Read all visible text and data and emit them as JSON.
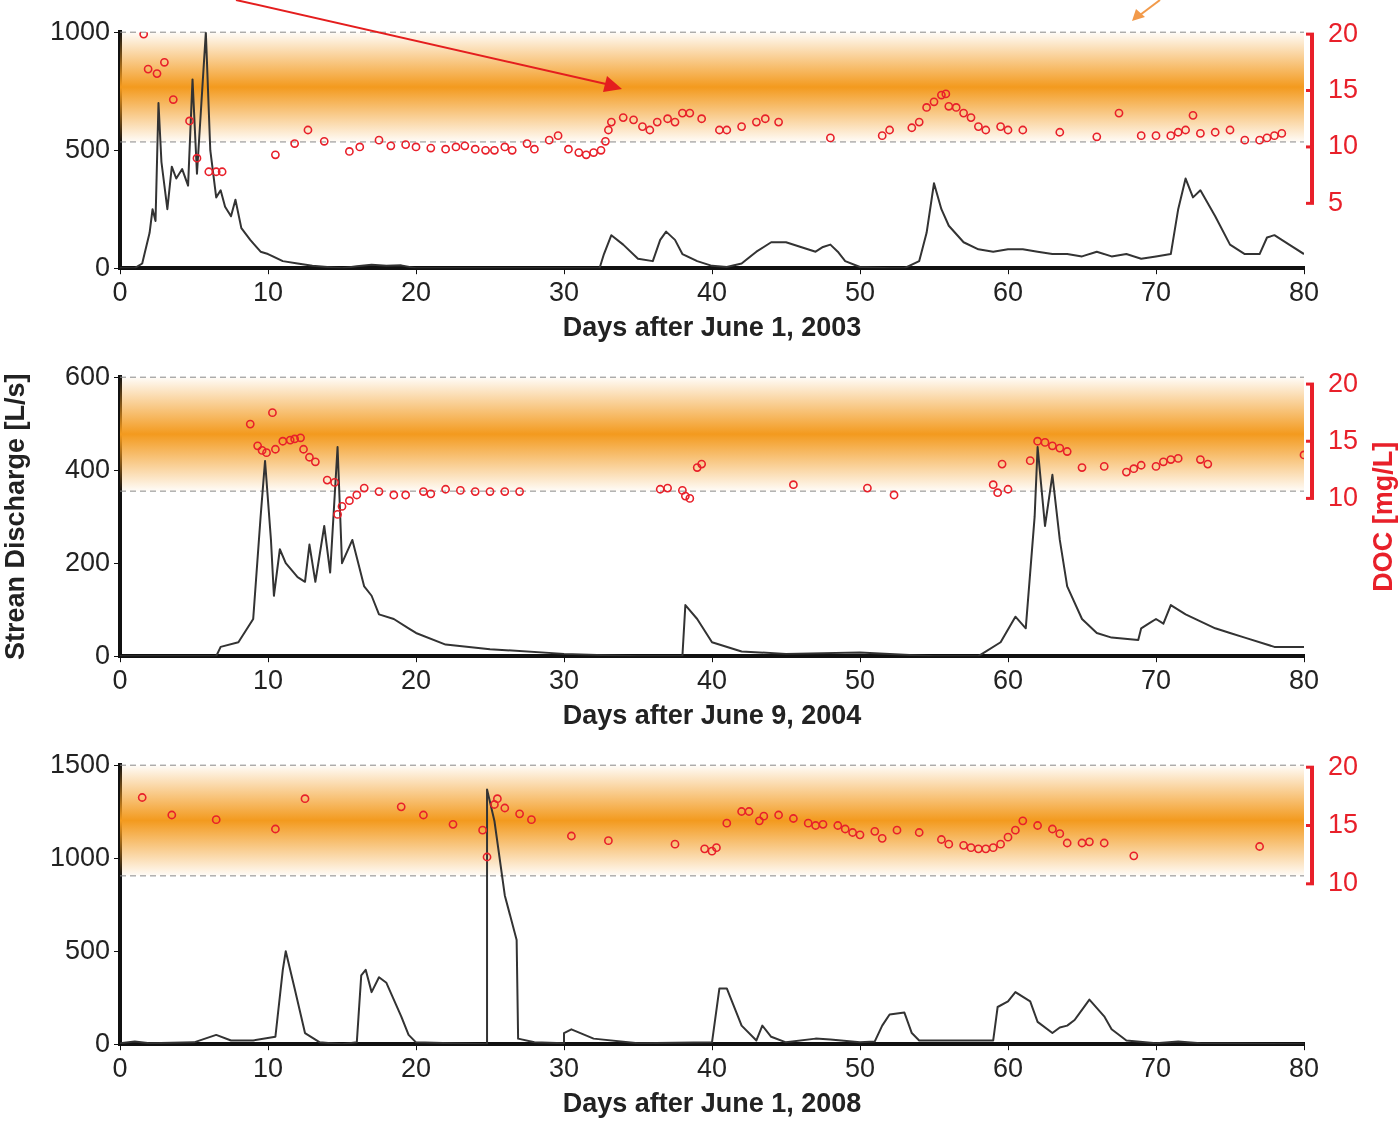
{
  "chart_data": [
    {
      "type": "line",
      "xlabel": "Days after June 1, 2003",
      "xlim": [
        0,
        80
      ],
      "xticks": [
        0,
        10,
        20,
        30,
        40,
        50,
        60,
        70,
        80
      ],
      "ylim": [
        0,
        1000
      ],
      "yticks": [
        0,
        500,
        1000
      ],
      "y2lim": [
        -0.75,
        20.17
      ],
      "y2ticks": [
        5,
        10,
        15,
        20
      ],
      "grid": false,
      "bands": [
        {
          "axis": "y",
          "from": 535,
          "to": 1000,
          "color": "#f39a1e"
        }
      ],
      "ref_lines": [
        {
          "axis": "y",
          "value": 1000,
          "color": "#888888",
          "line_style": "dashed"
        },
        {
          "axis": "y",
          "value": 535,
          "color": "#888888",
          "line_style": "dashed"
        }
      ],
      "series": [
        {
          "type": "line",
          "color": "#333333",
          "x": [
            0,
            1,
            1.5,
            2,
            2.2,
            2.4,
            2.6,
            2.8,
            3.2,
            3.5,
            3.8,
            4.2,
            4.6,
            4.9,
            5.2,
            5.5,
            5.8,
            6.1,
            6.5,
            6.8,
            7.1,
            7.5,
            7.8,
            8.2,
            8.8,
            9.5,
            10,
            11,
            12,
            13,
            14,
            15,
            16,
            17,
            18,
            19,
            20,
            22,
            25,
            30,
            32.4,
            32.7,
            33.2,
            34,
            35,
            36,
            36.5,
            36.9,
            37.5,
            38,
            39,
            40,
            41,
            42,
            43,
            44,
            45,
            46,
            47,
            47.5,
            48,
            48.5,
            49,
            50,
            52,
            53,
            54,
            54.5,
            55,
            55.5,
            56,
            57,
            58,
            59,
            60,
            61,
            62,
            63,
            64,
            65,
            66,
            67,
            68,
            69,
            70,
            71,
            71.5,
            72,
            72.5,
            73,
            74,
            75,
            76,
            77,
            77.5,
            78,
            79,
            80
          ],
          "values": [
            0,
            0,
            20,
            150,
            250,
            200,
            700,
            450,
            250,
            430,
            380,
            420,
            350,
            800,
            400,
            700,
            1000,
            500,
            300,
            330,
            260,
            220,
            290,
            170,
            120,
            70,
            60,
            30,
            20,
            10,
            5,
            0,
            8,
            15,
            10,
            12,
            0,
            0,
            0,
            0,
            0,
            60,
            140,
            100,
            40,
            30,
            120,
            155,
            120,
            60,
            30,
            10,
            5,
            20,
            70,
            110,
            110,
            90,
            70,
            90,
            100,
            70,
            30,
            5,
            0,
            0,
            30,
            150,
            360,
            250,
            180,
            110,
            80,
            70,
            80,
            80,
            70,
            60,
            60,
            50,
            70,
            50,
            60,
            40,
            50,
            60,
            250,
            380,
            300,
            330,
            220,
            100,
            60,
            60,
            130,
            140,
            100,
            60
          ]
        },
        {
          "type": "scatter",
          "axis": "y2",
          "color": "#e8202a",
          "marker": "circle",
          "x": [
            1.6,
            1.9,
            2.5,
            3.0,
            3.6,
            4.7,
            5.2,
            6.0,
            6.5,
            6.9,
            10.5,
            11.8,
            12.7,
            13.8,
            15.5,
            16.2,
            17.5,
            18.3,
            19.3,
            20,
            21,
            22,
            22.7,
            23.3,
            24,
            24.7,
            25.3,
            26,
            26.5,
            27.5,
            28,
            29,
            29.6,
            30.3,
            31,
            31.5,
            32,
            32.5,
            32.8,
            33,
            33.2,
            34,
            34.7,
            35.3,
            35.8,
            36.3,
            37,
            37.5,
            38,
            38.5,
            39.3,
            40.5,
            41,
            42,
            43,
            43.6,
            44.5,
            48,
            51.5,
            52,
            53.5,
            54,
            54.5,
            55,
            55.5,
            55.8,
            56,
            56.5,
            57,
            57.5,
            58,
            58.5,
            59.5,
            60,
            61,
            63.5,
            66,
            67.5,
            69,
            70,
            71,
            71.5,
            72,
            72.5,
            73,
            74,
            75,
            76,
            77,
            77.5,
            78,
            78.5
          ],
          "values": [
            20,
            16.9,
            16.5,
            17.5,
            14.2,
            12.3,
            9,
            7.8,
            7.8,
            7.8,
            9.3,
            10.3,
            11.5,
            10.5,
            9.6,
            10,
            10.6,
            10.1,
            10.2,
            10,
            9.9,
            9.8,
            10,
            10.1,
            9.8,
            9.7,
            9.7,
            10,
            9.7,
            10.3,
            9.8,
            10.6,
            11,
            9.8,
            9.5,
            9.3,
            9.5,
            9.7,
            10.5,
            11.5,
            12.2,
            12.6,
            12.4,
            11.8,
            11.5,
            12.2,
            12.5,
            12.2,
            13,
            13,
            12.5,
            11.5,
            11.5,
            11.8,
            12.2,
            12.5,
            12.2,
            10.8,
            11,
            11.5,
            11.7,
            12.2,
            13.5,
            14,
            14.6,
            14.7,
            13.6,
            13.5,
            13,
            12.6,
            11.8,
            11.5,
            11.8,
            11.5,
            11.5,
            11.3,
            10.9,
            13,
            11,
            11,
            11,
            11.3,
            11.5,
            12.8,
            11.2,
            11.3,
            11.5,
            10.6,
            10.6,
            10.8,
            11,
            11.2
          ]
        }
      ]
    },
    {
      "type": "line",
      "xlabel": "Days after June 9, 2004",
      "ylabel": "Strean Discharge [L/s]",
      "y2label": "DOC [mg/L]",
      "xlim": [
        0,
        80
      ],
      "xticks": [
        0,
        10,
        20,
        30,
        40,
        50,
        60,
        70,
        80
      ],
      "ylim": [
        0,
        600
      ],
      "yticks": [
        0,
        200,
        400,
        600
      ],
      "y2lim": [
        -3.8,
        20.6
      ],
      "y2ticks": [
        10,
        15,
        20
      ],
      "grid": false,
      "bands": [
        {
          "axis": "y",
          "from": 355,
          "to": 600,
          "color": "#f39a1e"
        }
      ],
      "ref_lines": [
        {
          "axis": "y",
          "value": 600,
          "color": "#888888",
          "line_style": "dashed"
        },
        {
          "axis": "y",
          "value": 355,
          "color": "#888888",
          "line_style": "dashed"
        }
      ],
      "series": [
        {
          "type": "line",
          "color": "#333333",
          "x": [
            0,
            6.5,
            6.8,
            8,
            9,
            9.5,
            9.8,
            10.2,
            10.4,
            10.8,
            11.2,
            12,
            12.5,
            12.8,
            13.2,
            13.8,
            14.2,
            14.7,
            15,
            15.7,
            16.5,
            17,
            17.5,
            18.5,
            19.5,
            20,
            22,
            25,
            30,
            35,
            38,
            38.2,
            39,
            40,
            42,
            45,
            50,
            55,
            58,
            59.5,
            60.5,
            61.2,
            61.8,
            62,
            62.5,
            63,
            63.5,
            64,
            65,
            66,
            67,
            68.8,
            69,
            69.5,
            70,
            70.5,
            71,
            72,
            73,
            74,
            75,
            76,
            78,
            80
          ],
          "values": [
            0,
            0,
            20,
            30,
            80,
            300,
            420,
            250,
            130,
            230,
            200,
            170,
            160,
            240,
            160,
            280,
            180,
            450,
            200,
            250,
            150,
            130,
            90,
            80,
            60,
            50,
            25,
            15,
            5,
            0,
            0,
            110,
            80,
            30,
            10,
            5,
            8,
            0,
            0,
            30,
            85,
            60,
            300,
            450,
            280,
            390,
            250,
            150,
            80,
            50,
            40,
            35,
            60,
            70,
            80,
            70,
            110,
            90,
            75,
            60,
            50,
            40,
            20,
            20
          ]
        },
        {
          "type": "scatter",
          "axis": "y2",
          "color": "#e8202a",
          "marker": "circle",
          "x": [
            8.8,
            9.3,
            9.6,
            9.9,
            10.3,
            10.5,
            11,
            11.5,
            11.8,
            12.2,
            12.4,
            12.8,
            13.2,
            14,
            14.5,
            14.7,
            15,
            15.5,
            16,
            16.5,
            17.5,
            18.5,
            19.3,
            20.5,
            21,
            22,
            23,
            24,
            25,
            26,
            27,
            36.5,
            37,
            38,
            38.2,
            38.5,
            39,
            39.3,
            45.5,
            50.5,
            52.3,
            59,
            59.3,
            59.6,
            60,
            61.5,
            62,
            62.5,
            63,
            63.5,
            64,
            65,
            66.5,
            68,
            68.5,
            69,
            70,
            70.5,
            71,
            71.5,
            73,
            73.5,
            80
          ],
          "values": [
            16.5,
            14.6,
            14.2,
            14,
            17.5,
            14.3,
            15,
            15.1,
            15.2,
            15.3,
            14.3,
            13.6,
            13.2,
            11.6,
            11.4,
            8.6,
            9.3,
            9.8,
            10.3,
            10.9,
            10.6,
            10.3,
            10.3,
            10.6,
            10.4,
            10.8,
            10.7,
            10.6,
            10.6,
            10.6,
            10.6,
            10.8,
            10.9,
            10.7,
            10.2,
            10,
            12.7,
            13,
            11.2,
            10.9,
            10.3,
            11.2,
            10.5,
            13,
            10.8,
            13.3,
            15,
            14.9,
            14.6,
            14.4,
            14.1,
            12.7,
            12.8,
            12.3,
            12.6,
            12.9,
            12.8,
            13.2,
            13.4,
            13.5,
            13.4,
            13,
            13.8
          ]
        }
      ]
    },
    {
      "type": "line",
      "xlabel": "Days after June 1, 2008",
      "xlim": [
        0,
        80
      ],
      "xticks": [
        0,
        10,
        20,
        30,
        40,
        50,
        60,
        70,
        80
      ],
      "ylim": [
        0,
        1500
      ],
      "yticks": [
        0,
        500,
        1000,
        1500
      ],
      "y2lim": [
        -3.75,
        20.17
      ],
      "y2ticks": [
        10,
        15,
        20
      ],
      "grid": false,
      "bands": [
        {
          "axis": "y",
          "from": 905,
          "to": 1500,
          "color": "#f39a1e"
        }
      ],
      "ref_lines": [
        {
          "axis": "y",
          "value": 1500,
          "color": "#888888",
          "line_style": "dashed"
        },
        {
          "axis": "y",
          "value": 905,
          "color": "#888888",
          "line_style": "dashed"
        }
      ],
      "series": [
        {
          "type": "line",
          "color": "#333333",
          "x": [
            0,
            1,
            2,
            5,
            6.5,
            7.5,
            9,
            10.5,
            11,
            11.2,
            11.8,
            12.5,
            13.5,
            15,
            16,
            16.3,
            16.6,
            17,
            17.5,
            18,
            19,
            19.5,
            20,
            24.8,
            24.8,
            25.3,
            26,
            26.8,
            26.9,
            28,
            30,
            30,
            30.5,
            32,
            35,
            40,
            40.5,
            41,
            42,
            43,
            43.4,
            44,
            45,
            47,
            48,
            50,
            51,
            51.5,
            52,
            53,
            53.5,
            54,
            59,
            59.3,
            60,
            60.5,
            61.5,
            62,
            63,
            63.5,
            64,
            64.5,
            65.5,
            66.5,
            67,
            68,
            70,
            71.5,
            73,
            80
          ],
          "values": [
            5,
            15,
            5,
            10,
            50,
            20,
            20,
            40,
            400,
            500,
            300,
            60,
            10,
            0,
            10,
            370,
            400,
            280,
            360,
            330,
            150,
            50,
            10,
            0,
            1370,
            1200,
            800,
            560,
            30,
            10,
            5,
            60,
            80,
            30,
            5,
            10,
            300,
            300,
            100,
            20,
            100,
            40,
            10,
            30,
            25,
            10,
            15,
            100,
            160,
            170,
            60,
            20,
            20,
            200,
            230,
            280,
            230,
            120,
            60,
            90,
            100,
            130,
            240,
            150,
            80,
            20,
            5,
            15,
            5,
            0
          ]
        },
        {
          "type": "scatter",
          "axis": "y2",
          "color": "#e8202a",
          "marker": "circle",
          "x": [
            1.5,
            3.5,
            6.5,
            10.5,
            12.5,
            19,
            20.5,
            22.5,
            24.5,
            24.8,
            25.3,
            25.5,
            26,
            27,
            27.8,
            30.5,
            33,
            37.5,
            39.5,
            40,
            40.3,
            41,
            42,
            42.5,
            43.2,
            43.5,
            44.5,
            45.5,
            46.5,
            47,
            47.5,
            48.5,
            49,
            49.5,
            50,
            51,
            51.5,
            52.5,
            54,
            55.5,
            56,
            57,
            57.5,
            58,
            58.5,
            59,
            59.5,
            60,
            60.5,
            61,
            62,
            63,
            63.5,
            64,
            65,
            65.5,
            66.5,
            68.5,
            77
          ],
          "values": [
            17.4,
            15.9,
            15.5,
            14.7,
            17.3,
            16.6,
            15.9,
            15.1,
            14.6,
            12.3,
            16.8,
            17.3,
            16.5,
            16,
            15.5,
            14.1,
            13.7,
            13.4,
            13,
            12.8,
            13.1,
            15.2,
            16.2,
            16.2,
            15.4,
            15.8,
            15.9,
            15.6,
            15.2,
            15,
            15.1,
            15,
            14.7,
            14.4,
            14.2,
            14.5,
            13.9,
            14.6,
            14.4,
            13.8,
            13.4,
            13.3,
            13.1,
            13,
            13,
            13.1,
            13.4,
            14,
            14.6,
            15.4,
            15,
            14.7,
            14.3,
            13.5,
            13.5,
            13.6,
            13.5,
            12.4,
            13.2
          ]
        }
      ]
    }
  ]
}
